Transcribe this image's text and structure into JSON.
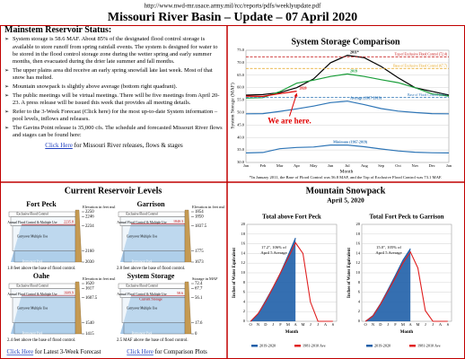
{
  "header": {
    "url": "http://www.nwd-mr.usace.army.mil/rcc/reports/pdfs/weeklyupdate.pdf",
    "title": "Missouri River Basin – Update – 07 April 2020"
  },
  "status": {
    "heading": "Mainstem Reservoir Status:",
    "bullets": [
      "System storage is 58.6 MAF. About 85% of the designated flood control storage is available to store runoff from spring rainfall events. The system is designed for water to be stored in the flood control storage zone during the wetter spring and early summer months, then evacuated during the drier late summer and fall months.",
      "The upper plains area did receive an early spring snowfall late last week.  Most of that snow has melted.",
      "Mountain snowpack is slightly above average (bottom right quadrant).",
      "The public meetings will be virtual meetings.  There will be five meetings from April 20-23.  A press release will be issued this week that provides all meeting details.",
      "Refer to the 3-Week Forecast (Click here) for the most up-to-date System information – pool levels, inflows and releases.",
      "The Gavins Point release is 35,000 cfs. The schedule and forecasted Missouri River flows and stages can be found here:"
    ],
    "link": {
      "text": "Click Here",
      "rest": " for Missouri River releases, flows & stages"
    }
  },
  "storage_chart": {
    "type": "line",
    "title": "System Storage Comparison",
    "xlabel": "Month",
    "ylabel": "System Storage (MAF)",
    "categories": [
      "Jan",
      "Feb",
      "Mar",
      "Apr",
      "May",
      "Jun",
      "Jul",
      "Aug",
      "Sep",
      "Oct",
      "Nov",
      "Dec",
      "Jan"
    ],
    "ylim": [
      30,
      75
    ],
    "yticks": [
      {
        "value": 30,
        "label": "30.0"
      },
      {
        "value": 35,
        "label": "35.0"
      },
      {
        "value": 40,
        "label": "40.0"
      },
      {
        "value": 45,
        "label": "45.0"
      },
      {
        "value": 50,
        "label": "50.0"
      },
      {
        "value": 55,
        "label": "55.0"
      },
      {
        "value": 60,
        "label": "60.0"
      },
      {
        "value": 65,
        "label": "65.0"
      },
      {
        "value": 70,
        "label": "70.0"
      },
      {
        "value": 75,
        "label": "75.0"
      }
    ],
    "grid": true,
    "zones": [
      {
        "label": "Top of Exclusive Flood Control (72.4)",
        "value": 72.4,
        "color": "#c00000"
      },
      {
        "label": "Base of Exclusive Flood Control (67.7)",
        "value": 67.7,
        "color": "#e3a21a"
      },
      {
        "label": "Base of Flood Control (56.1)",
        "value": 56.1,
        "color": "#2e75b6"
      }
    ],
    "series": [
      {
        "name": "Minimum (1967-2019)",
        "color": "#2e75b6",
        "values": [
          33.8,
          34.0,
          35.5,
          36.0,
          36.2,
          37.0,
          37.0,
          36.3,
          35.4,
          34.6,
          34.1,
          33.9,
          33.8
        ]
      },
      {
        "name": "Average (1967-2019)",
        "color": "#2e75b6",
        "values": [
          49.5,
          49.6,
          50.5,
          51.5,
          52.6,
          54.0,
          54.6,
          53.2,
          51.6,
          50.6,
          50.0,
          49.6,
          49.5
        ]
      },
      {
        "name": "2011*",
        "color": "#000000",
        "values": [
          57.0,
          57.2,
          58.0,
          60.0,
          63.5,
          70.0,
          73.0,
          72.0,
          68.5,
          64.0,
          60.0,
          58.5,
          57.0
        ]
      },
      {
        "name": "2019",
        "color": "#1a9e3a",
        "values": [
          55.8,
          56.0,
          58.4,
          61.8,
          63.0,
          64.5,
          65.5,
          64.5,
          63.2,
          62.0,
          60.0,
          57.5,
          56.6
        ]
      },
      {
        "name": "2020",
        "color": "#e00000",
        "values": [
          56.6,
          56.5,
          57.6,
          58.6,
          null,
          null,
          null,
          null,
          null,
          null,
          null,
          null,
          null
        ]
      }
    ],
    "annotation": "We are here.",
    "footnote": "*In January 2011, the Base of Flood Control was 56.8 MAF, and the Top of Exclusive Flood Control was 73.1 MAF."
  },
  "reservoirs": {
    "title": "Current Reservoir Levels",
    "unit_labels": [
      "Elevation in feet msl",
      "Storage in MAF"
    ],
    "zone_labels": [
      "Exclusive Flood Control",
      "Annual Flood Control & Multiple Use",
      "Carryover Multiple Use",
      "Permanent Pool"
    ],
    "items": [
      {
        "name": "Fort Peck",
        "unit": 0,
        "levels": [
          2250,
          2246,
          2234,
          2160,
          2030
        ],
        "current": 2235.8,
        "note": "1.8 feet above the base of flood control."
      },
      {
        "name": "Garrison",
        "unit": 0,
        "levels": [
          1854,
          1850,
          1837.5,
          1775,
          1673
        ],
        "current": 1840.3,
        "note": "2.8 feet above the base of flood control."
      },
      {
        "name": "Oahe",
        "unit": 0,
        "levels": [
          1620,
          1617,
          1607.5,
          1540,
          1415
        ],
        "current": 1609.9,
        "note": "2.4 feet above the base of flood control."
      },
      {
        "name": "System Storage",
        "unit": 1,
        "levels": [
          72.4,
          67.7,
          56.1,
          17.6,
          0
        ],
        "current": 58.6,
        "current_label": "Current Storage",
        "note": "2.5 MAF above the base of flood control."
      }
    ],
    "links": [
      {
        "text": "Click Here",
        "rest": " for Latest 3-Week Forecast"
      },
      {
        "text": "Click Here",
        "rest": " for Comparison Plots"
      }
    ]
  },
  "snowpack": {
    "title": "Mountain Snowpack",
    "date": "April 5, 2020",
    "charts": [
      {
        "type": "line",
        "title": "Total above Fort Peck",
        "xlabel": "Month",
        "ylabel": "Inches of Water Equivalent",
        "categories": [
          "O",
          "N",
          "D",
          "J",
          "F",
          "M",
          "A",
          "M",
          "J",
          "J",
          "A",
          "S"
        ],
        "ylim": [
          0,
          20
        ],
        "yticks": [
          0,
          2,
          4,
          6,
          8,
          10,
          12,
          14,
          16,
          18,
          20
        ],
        "grid": true,
        "series": [
          {
            "name": "2019-2020",
            "color": "#1f5fa8",
            "area": true,
            "values": [
              0,
              1.5,
              4.2,
              7.0,
              10.0,
              13.5,
              17.2,
              null,
              null,
              null,
              null,
              null
            ]
          },
          {
            "name": "1981-2010 Ave",
            "color": "#e02020",
            "area": false,
            "values": [
              0,
              1.6,
              4.0,
              7.0,
              10.0,
              13.0,
              16.2,
              14.0,
              4.0,
              0,
              0,
              0
            ]
          }
        ],
        "annotation": [
          "17.2\", 106% of",
          "April 5 Average"
        ]
      },
      {
        "type": "line",
        "title": "Total Fort Peck to Garrison",
        "xlabel": "Month",
        "ylabel": "Inches of Water Equivalent",
        "categories": [
          "O",
          "N",
          "D",
          "J",
          "F",
          "M",
          "A",
          "M",
          "J",
          "J",
          "A",
          "S"
        ],
        "ylim": [
          0,
          20
        ],
        "yticks": [
          0,
          2,
          4,
          6,
          8,
          10,
          12,
          14,
          16,
          18,
          20
        ],
        "grid": true,
        "series": [
          {
            "name": "2019-2020",
            "color": "#1f5fa8",
            "area": true,
            "values": [
              0,
              1.2,
              3.6,
              6.5,
              9.5,
              12.6,
              15.0,
              null,
              null,
              null,
              null,
              null
            ]
          },
          {
            "name": "1981-2010 Ave",
            "color": "#e02020",
            "area": false,
            "values": [
              0,
              1.1,
              3.5,
              6.2,
              9.0,
              12.0,
              14.3,
              11.0,
              2.2,
              0,
              0,
              0
            ]
          }
        ],
        "annotation": [
          "15.0\", 105% of",
          "April 5 Average"
        ]
      }
    ]
  }
}
